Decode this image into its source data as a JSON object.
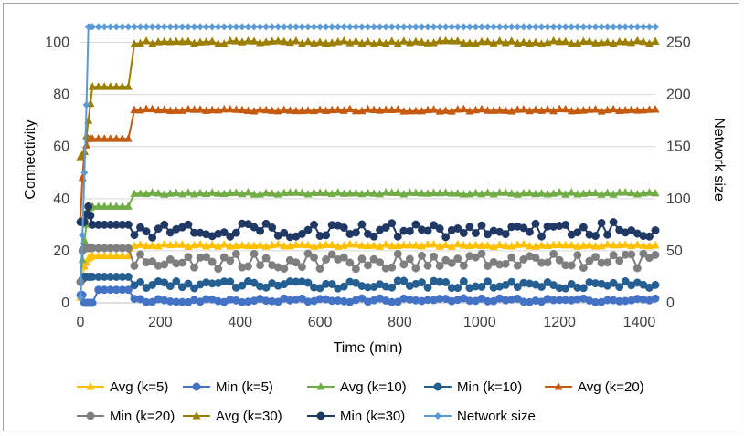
{
  "chart_data": {
    "type": "line",
    "xlabel": "Time (min)",
    "ylabel": "Connectivity",
    "y2label": "Network size",
    "xlim": [
      0,
      1440
    ],
    "ylim": [
      0,
      110
    ],
    "y2lim": [
      0,
      275
    ],
    "x_ticks": [
      0,
      200,
      400,
      600,
      800,
      1000,
      1200,
      1400
    ],
    "y_ticks": [
      0,
      20,
      40,
      60,
      80,
      100
    ],
    "y2_ticks": [
      0,
      50,
      100,
      150,
      200,
      250
    ],
    "grid": "horizontal",
    "legend_position": "bottom",
    "series": [
      {
        "name": "Avg (k=5)",
        "axis": "left",
        "color": "#ffc000",
        "marker": "triangle",
        "phases": [
          [
            0,
            2
          ],
          [
            5,
            10
          ],
          [
            10,
            14
          ],
          [
            20,
            17
          ],
          [
            30,
            18
          ],
          [
            120,
            18
          ],
          [
            135,
            22
          ],
          [
            1440,
            22
          ]
        ],
        "jitter": 0.5
      },
      {
        "name": "Min (k=5)",
        "axis": "left",
        "color": "#4472c4",
        "marker": "circle",
        "phases": [
          [
            0,
            3
          ],
          [
            5,
            3
          ],
          [
            10,
            0
          ],
          [
            30,
            0
          ],
          [
            35,
            5
          ],
          [
            120,
            5
          ],
          [
            135,
            1
          ],
          [
            1440,
            1
          ]
        ],
        "jitter": 0.8
      },
      {
        "name": "Avg (k=10)",
        "axis": "left",
        "color": "#70ad47",
        "marker": "triangle",
        "phases": [
          [
            0,
            9
          ],
          [
            10,
            24
          ],
          [
            20,
            36
          ],
          [
            30,
            37
          ],
          [
            120,
            37
          ],
          [
            135,
            42
          ],
          [
            1440,
            42
          ]
        ],
        "jitter": 0.4
      },
      {
        "name": "Min (k=10)",
        "axis": "left",
        "color": "#255e91",
        "marker": "circle",
        "phases": [
          [
            0,
            8
          ],
          [
            5,
            9
          ],
          [
            10,
            10
          ],
          [
            120,
            10
          ],
          [
            135,
            7
          ],
          [
            1440,
            7
          ]
        ],
        "jitter": 1.5
      },
      {
        "name": "Avg (k=20)",
        "axis": "left",
        "color": "#c55a11",
        "marker": "triangle",
        "phases": [
          [
            0,
            32
          ],
          [
            5,
            48
          ],
          [
            10,
            58
          ],
          [
            20,
            63
          ],
          [
            120,
            63
          ],
          [
            135,
            74
          ],
          [
            1440,
            74
          ]
        ],
        "jitter": 0.5
      },
      {
        "name": "Min (k=20)",
        "axis": "left",
        "color": "#7f7f7f",
        "marker": "circle",
        "phases": [
          [
            0,
            8
          ],
          [
            5,
            20
          ],
          [
            10,
            21
          ],
          [
            120,
            21
          ],
          [
            135,
            16
          ],
          [
            1440,
            16
          ]
        ],
        "jitter": 3
      },
      {
        "name": "Avg (k=30)",
        "axis": "left",
        "color": "#9c7f00",
        "marker": "triangle",
        "phases": [
          [
            0,
            56
          ],
          [
            10,
            58
          ],
          [
            20,
            70
          ],
          [
            30,
            83
          ],
          [
            120,
            83
          ],
          [
            135,
            100
          ],
          [
            1440,
            100
          ]
        ],
        "jitter": 0.6
      },
      {
        "name": "Min (k=30)",
        "axis": "left",
        "color": "#203864",
        "marker": "circle",
        "phases": [
          [
            0,
            31
          ],
          [
            10,
            31
          ],
          [
            20,
            37
          ],
          [
            30,
            30
          ],
          [
            120,
            30
          ],
          [
            135,
            28
          ],
          [
            1440,
            28
          ]
        ],
        "jitter": 3
      },
      {
        "name": "Network size",
        "axis": "right",
        "color": "#5b9bd5",
        "marker": "diamond",
        "phases": [
          [
            0,
            5
          ],
          [
            5,
            65
          ],
          [
            10,
            125
          ],
          [
            15,
            190
          ],
          [
            20,
            265
          ],
          [
            30,
            265
          ],
          [
            1440,
            265
          ]
        ],
        "jitter": 0
      }
    ],
    "sample_step_min": 15
  }
}
